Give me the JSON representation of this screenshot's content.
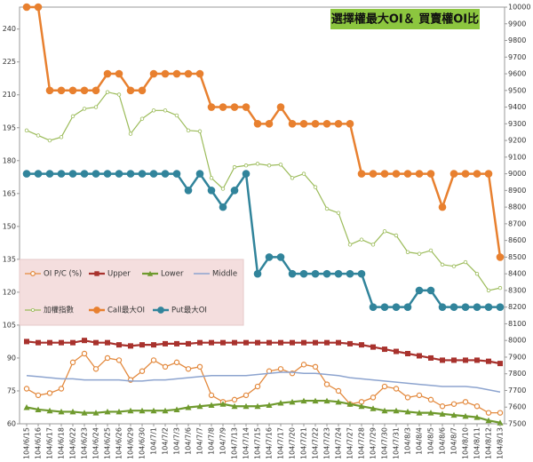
{
  "chart_data": {
    "type": "line",
    "title": "選擇權最大OI＆ 買賣權OI比",
    "categories": [
      "104/6/15",
      "104/6/16",
      "104/6/17",
      "104/6/18",
      "104/6/22",
      "104/6/23",
      "104/6/24",
      "104/6/25",
      "104/6/26",
      "104/6/29",
      "104/6/30",
      "104/7/1",
      "104/7/2",
      "104/7/3",
      "104/7/6",
      "104/7/7",
      "104/7/8",
      "104/7/9",
      "104/7/13",
      "104/7/14",
      "104/7/15",
      "104/7/16",
      "104/7/17",
      "104/7/20",
      "104/7/21",
      "104/7/22",
      "104/7/23",
      "104/7/24",
      "104/7/27",
      "104/7/28",
      "104/7/29",
      "104/7/30",
      "104/7/31",
      "104/8/3",
      "104/8/4",
      "104/8/5",
      "104/8/6",
      "104/8/7",
      "104/8/10",
      "104/8/11",
      "104/8/12",
      "104/8/13"
    ],
    "ylim": [
      60,
      250
    ],
    "yticks": [
      60,
      75,
      90,
      105,
      120,
      135,
      150,
      165,
      180,
      195,
      210,
      225,
      240
    ],
    "y2lim": [
      7500,
      10000
    ],
    "y2ticks": [
      7500,
      7600,
      7700,
      7800,
      7900,
      8000,
      8100,
      8200,
      8300,
      8400,
      8500,
      8600,
      8700,
      8800,
      8900,
      9000,
      9100,
      9200,
      9300,
      9400,
      9500,
      9600,
      9700,
      9800,
      9900,
      10000
    ],
    "grid": false,
    "series": [
      {
        "name": "OI P/C (%)",
        "color": "#e38a3f",
        "marker": "circle-open",
        "values": [
          76,
          73,
          74,
          76,
          88,
          92,
          85,
          90,
          89,
          80,
          84,
          89,
          86,
          88,
          85,
          86,
          73,
          70,
          71,
          73,
          77,
          84,
          85,
          83,
          87,
          86,
          78,
          75,
          69,
          70,
          72,
          77,
          76,
          72,
          73,
          71,
          68,
          69,
          70,
          68,
          65,
          65
        ]
      },
      {
        "name": "Upper",
        "color": "#a8322d",
        "marker": "square",
        "values": [
          97.5,
          97,
          97,
          97,
          97,
          98,
          97,
          97,
          96,
          95.5,
          96,
          96,
          96.5,
          96.5,
          96.5,
          97,
          97,
          97,
          97,
          97,
          97,
          97,
          97,
          97,
          97,
          97,
          97,
          97,
          96.5,
          96,
          95,
          94,
          93,
          92,
          91,
          90,
          89,
          89,
          89,
          89,
          88.5,
          87.5
        ]
      },
      {
        "name": "Lower",
        "color": "#6f9a2e",
        "marker": "triangle",
        "values": [
          67.5,
          66.5,
          66,
          65.5,
          65.5,
          65,
          65,
          65.5,
          65.5,
          66,
          66,
          66,
          66,
          66.5,
          67.5,
          68,
          68.5,
          69,
          68,
          68,
          68,
          68.5,
          69.5,
          70,
          70.5,
          70.5,
          70.5,
          70,
          69,
          68,
          67,
          66,
          66,
          65.5,
          65,
          65,
          64.5,
          64,
          63.5,
          63,
          61.5,
          60.5
        ]
      },
      {
        "name": "Middle",
        "color": "#8da4cf",
        "marker": "none",
        "values": [
          82,
          81.5,
          81,
          80.5,
          80.5,
          80,
          80,
          80,
          80,
          79.5,
          79.5,
          80,
          80,
          80.5,
          81,
          81.5,
          82,
          82,
          82,
          82,
          82.5,
          83,
          83.5,
          83.5,
          83,
          83,
          82.5,
          82,
          81,
          80.5,
          80,
          79.5,
          79,
          78.5,
          78,
          77.5,
          77,
          77,
          77,
          76.5,
          75.5,
          74.5
        ]
      },
      {
        "name": "加權指數",
        "color": "#9bbb59",
        "marker": "dot-open",
        "axis": "y2",
        "values": [
          9260,
          9230,
          9200,
          9220,
          9345,
          9390,
          9400,
          9490,
          9475,
          9240,
          9330,
          9380,
          9380,
          9350,
          9260,
          9255,
          8975,
          8910,
          9040,
          9050,
          9060,
          9050,
          9055,
          8975,
          9000,
          8920,
          8790,
          8765,
          8575,
          8605,
          8575,
          8655,
          8630,
          8530,
          8520,
          8540,
          8455,
          8445,
          8470,
          8400,
          8300,
          8315
        ]
      },
      {
        "name": "Call最大OI",
        "color": "#e8802f",
        "marker": "circle",
        "axis": "y2",
        "values": [
          10000,
          10000,
          9500,
          9500,
          9500,
          9500,
          9500,
          9600,
          9600,
          9500,
          9500,
          9600,
          9600,
          9600,
          9600,
          9600,
          9400,
          9400,
          9400,
          9400,
          9300,
          9300,
          9400,
          9300,
          9300,
          9300,
          9300,
          9300,
          9300,
          9000,
          9000,
          9000,
          9000,
          9000,
          9000,
          9000,
          8800,
          9000,
          9000,
          9000,
          9000,
          8500
        ]
      },
      {
        "name": "Put最大OI",
        "color": "#31849b",
        "marker": "circle",
        "axis": "y2",
        "values": [
          9000,
          9000,
          9000,
          9000,
          9000,
          9000,
          9000,
          9000,
          9000,
          9000,
          9000,
          9000,
          9000,
          9000,
          8900,
          9000,
          8900,
          8800,
          8900,
          9000,
          8400,
          8500,
          8500,
          8400,
          8400,
          8400,
          8400,
          8400,
          8400,
          8400,
          8200,
          8200,
          8200,
          8200,
          8300,
          8300,
          8200,
          8200,
          8200,
          8200,
          8200,
          8200
        ]
      }
    ]
  }
}
